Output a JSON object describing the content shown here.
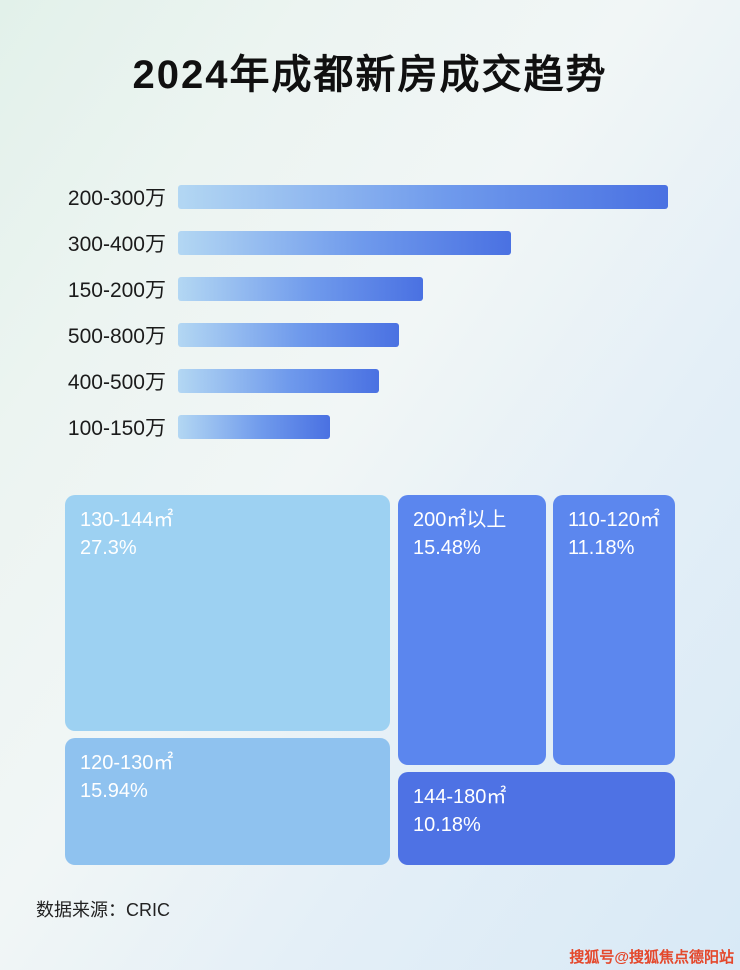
{
  "header": {
    "title": "2024年成都新房成交趋势"
  },
  "chart_data": [
    {
      "type": "bar",
      "orientation": "horizontal",
      "title": "2024年成都新房成交趋势",
      "categories": [
        "200-300万",
        "300-400万",
        "150-200万",
        "500-800万",
        "400-500万",
        "100-150万"
      ],
      "values": [
        100,
        68,
        50,
        45,
        41,
        31
      ],
      "value_note": "relative bar length as % of longest bar; no numeric axis or data labels shown",
      "axis_shown": false,
      "bar_gradient": [
        "#b3d7f3",
        "#4a71e2"
      ]
    },
    {
      "type": "treemap",
      "items": [
        {
          "label": "130-144㎡",
          "pct_text": "27.3%",
          "value": 27.3,
          "color": "#9dd1f2"
        },
        {
          "label": "200㎡以上",
          "pct_text": "15.48%",
          "value": 15.48,
          "color": "#5b86ee"
        },
        {
          "label": "110-120㎡",
          "pct_text": "11.18%",
          "value": 11.18,
          "color": "#5c87ee"
        },
        {
          "label": "120-130㎡",
          "pct_text": "15.94%",
          "value": 15.94,
          "color": "#8fc2ef"
        },
        {
          "label": "144-180㎡",
          "pct_text": "10.18%",
          "value": 10.18,
          "color": "#4e72e4"
        }
      ]
    }
  ],
  "footer": {
    "source": "数据来源：CRIC"
  },
  "watermark": {
    "text": "搜狐号@搜狐焦点德阳站",
    "color": "#e4482c"
  }
}
